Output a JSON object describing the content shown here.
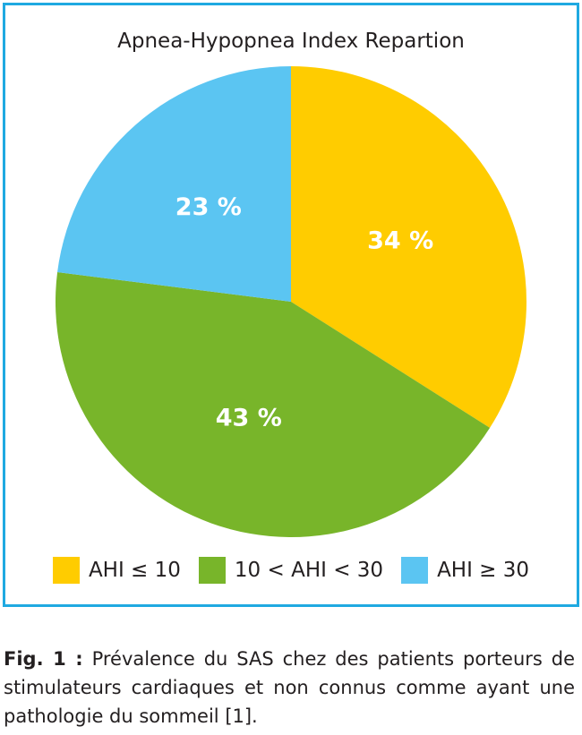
{
  "chart_data": {
    "type": "pie",
    "title": "Apnea-Hypopnea Index Repartion",
    "categories": [
      "AHI ≤ 10",
      "10 < AHI < 30",
      "AHI ≥ 30"
    ],
    "values": [
      34,
      43,
      23
    ],
    "value_labels": [
      "34 %",
      "43 %",
      "23 %"
    ],
    "colors": [
      "#ffcc00",
      "#78b52a",
      "#5bc5f2"
    ],
    "start_angle": "12 o'clock",
    "direction": "clockwise",
    "legend_position": "bottom"
  },
  "frame_color": "#1fa9e1",
  "caption": {
    "label": "Fig. 1 :",
    "text": "Prévalence du SAS chez des patients porteurs de stimulateurs cardiaques et non connus comme ayant une pathologie du sommeil [1]."
  }
}
